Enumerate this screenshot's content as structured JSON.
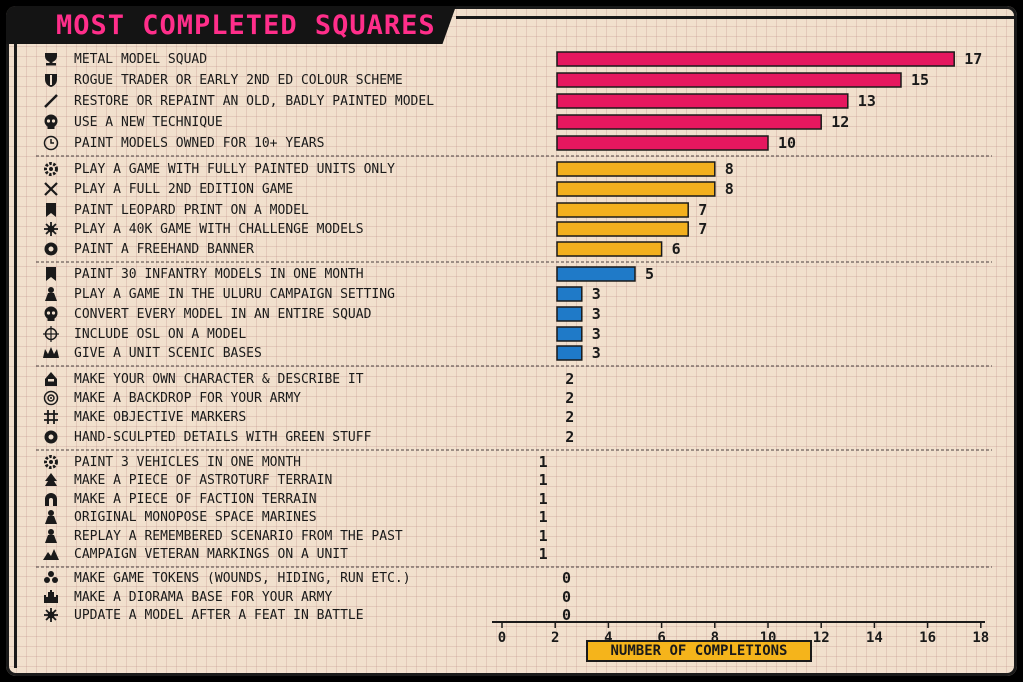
{
  "chart_data": {
    "type": "bar",
    "orientation": "horizontal",
    "title": "MOST COMPLETED SQUARES",
    "xlabel": "NUMBER OF COMPLETIONS",
    "xlim": [
      0,
      18
    ],
    "xticks": [
      0,
      2,
      4,
      6,
      8,
      10,
      12,
      14,
      16,
      18
    ],
    "grid": true,
    "groups": [
      {
        "color": "#e5175f",
        "items": [
          {
            "label": "METAL MODEL SQUAD",
            "value": 17,
            "icon": "trophy-icon"
          },
          {
            "label": "ROGUE TRADER OR EARLY 2ND ED COLOUR SCHEME",
            "value": 15,
            "icon": "shield-icon"
          },
          {
            "label": "RESTORE OR REPAINT AN OLD, BADLY PAINTED MODEL",
            "value": 13,
            "icon": "brush-icon"
          },
          {
            "label": "USE A NEW TECHNIQUE",
            "value": 12,
            "icon": "skull-icon"
          },
          {
            "label": "PAINT MODELS OWNED FOR 10+ YEARS",
            "value": 10,
            "icon": "clock-icon"
          }
        ]
      },
      {
        "color": "#f2b01e",
        "items": [
          {
            "label": "PLAY A GAME WITH FULLY PAINTED UNITS ONLY",
            "value": 8,
            "icon": "gear-icon"
          },
          {
            "label": "PLAY A FULL 2ND EDITION GAME",
            "value": 8,
            "icon": "crossed-swords-icon"
          },
          {
            "label": "PAINT LEOPARD PRINT ON A MODEL",
            "value": 7,
            "icon": "banner-icon"
          },
          {
            "label": "PLAY A 40K GAME WITH CHALLENGE MODELS",
            "value": 7,
            "icon": "burst-icon"
          },
          {
            "label": "PAINT A FREEHAND BANNER",
            "value": 6,
            "icon": "cog-icon"
          }
        ]
      },
      {
        "color": "#1f7ac8",
        "items": [
          {
            "label": "PAINT 30 INFANTRY MODELS IN ONE MONTH",
            "value": 5,
            "icon": "banner-icon"
          },
          {
            "label": "PLAY A GAME IN THE ULURU CAMPAIGN SETTING",
            "value": 3,
            "icon": "figure-icon"
          },
          {
            "label": "CONVERT EVERY MODEL IN AN ENTIRE SQUAD",
            "value": 3,
            "icon": "skull-icon"
          },
          {
            "label": "INCLUDE OSL ON A MODEL",
            "value": 3,
            "icon": "crosshair-icon"
          },
          {
            "label": "GIVE A UNIT SCENIC BASES",
            "value": 3,
            "icon": "crown-icon"
          }
        ]
      },
      {
        "color": "#2f8f3a",
        "items": [
          {
            "label": "MAKE YOUR OWN CHARACTER & DESCRIBE IT",
            "value": 2,
            "icon": "helmet-icon"
          },
          {
            "label": "MAKE A BACKDROP FOR YOUR ARMY",
            "value": 2,
            "icon": "target-icon"
          },
          {
            "label": "MAKE OBJECTIVE MARKERS",
            "value": 2,
            "icon": "hash-icon"
          },
          {
            "label": "HAND-SCULPTED DETAILS WITH GREEN STUFF",
            "value": 2,
            "icon": "cog-icon"
          }
        ]
      },
      {
        "color": "#2f8f3a",
        "items": [
          {
            "label": "PAINT 3 VEHICLES IN ONE MONTH",
            "value": 1,
            "icon": "gear-icon"
          },
          {
            "label": "MAKE A PIECE OF ASTROTURF TERRAIN",
            "value": 1,
            "icon": "tree-icon"
          },
          {
            "label": "MAKE A PIECE OF FACTION TERRAIN",
            "value": 1,
            "icon": "arch-icon"
          },
          {
            "label": "ORIGINAL MONOPOSE SPACE MARINES",
            "value": 1,
            "icon": "figure-icon"
          },
          {
            "label": "REPLAY A REMEMBERED SCENARIO FROM THE PAST",
            "value": 1,
            "icon": "figure-icon"
          },
          {
            "label": "CAMPAIGN VETERAN MARKINGS ON A UNIT",
            "value": 1,
            "icon": "mountain-icon"
          }
        ]
      },
      {
        "color": "#2f8f3a",
        "items": [
          {
            "label": "MAKE GAME TOKENS (WOUNDS, HIDING, RUN ETC.)",
            "value": 0,
            "icon": "tokens-icon"
          },
          {
            "label": "MAKE A DIORAMA BASE FOR YOUR ARMY",
            "value": 0,
            "icon": "castle-icon"
          },
          {
            "label": "UPDATE A MODEL AFTER A FEAT IN BATTLE",
            "value": 0,
            "icon": "burst-icon"
          }
        ]
      }
    ]
  }
}
